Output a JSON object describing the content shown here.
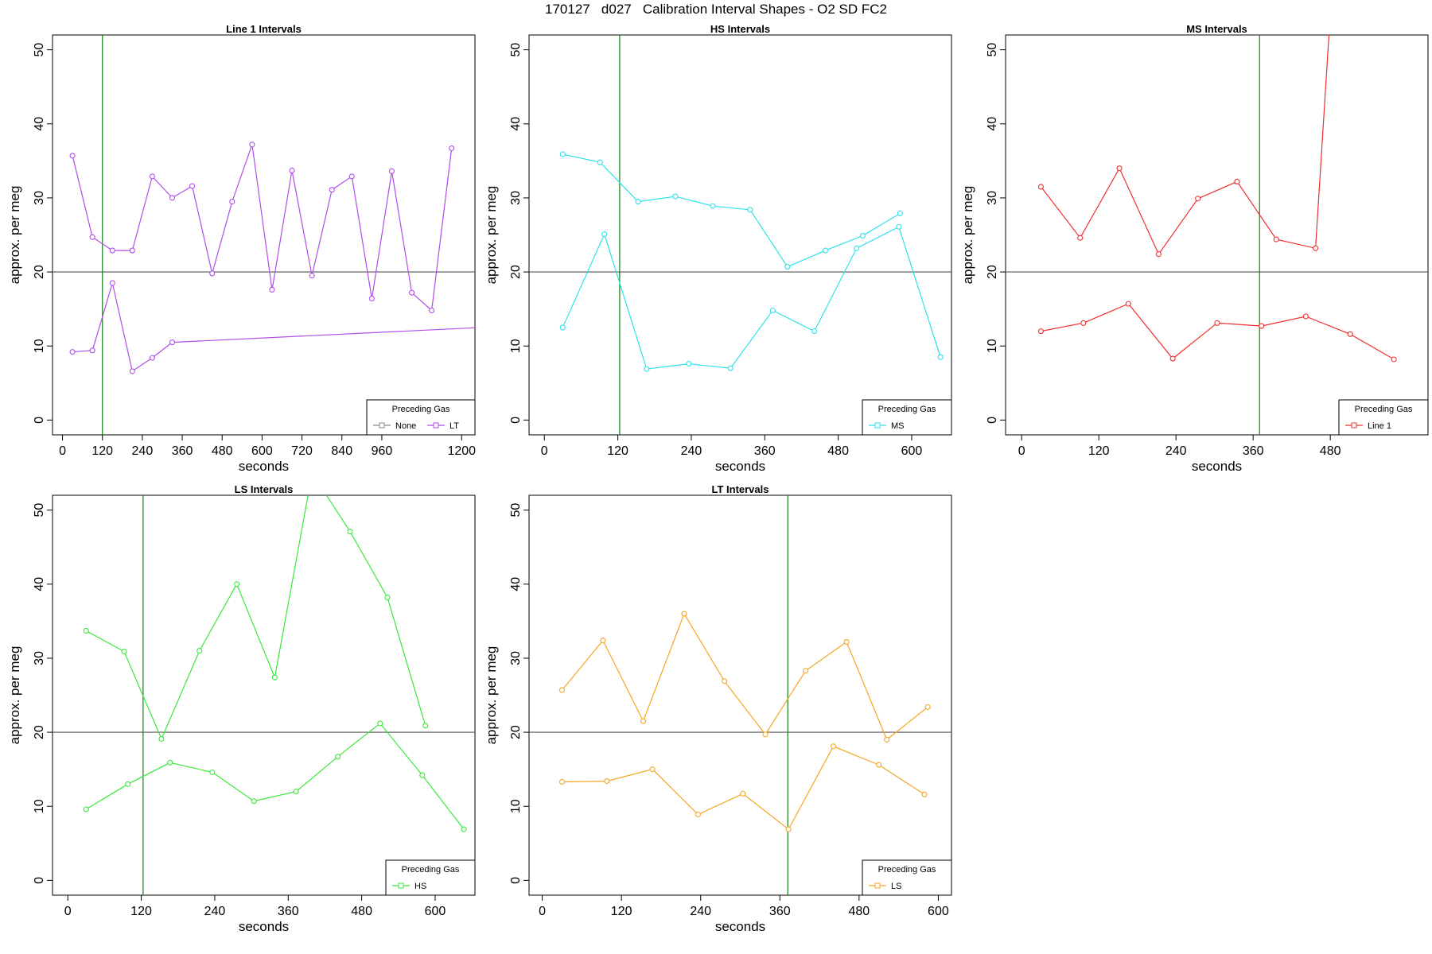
{
  "figure": {
    "title": "170127   d027   Calibration Interval Shapes - O2 SD FC2"
  },
  "colors": {
    "axis": "#000000",
    "hline": "#555555",
    "vline": "#1a7f1a",
    "none": "#888888",
    "lt": "#b04de8",
    "ms": "#2ee3ea",
    "line1": "#ee3030",
    "hs": "#3ae83a",
    "ls": "#f5a623"
  },
  "chart_data": [
    {
      "type": "line",
      "title": "Line 1 Intervals",
      "xlabel": "seconds",
      "ylabel": "approx. per meg",
      "xlim": [
        -30,
        1240
      ],
      "ylim": [
        -2,
        52
      ],
      "xticks": [
        0,
        120,
        240,
        360,
        480,
        600,
        720,
        840,
        960,
        1200
      ],
      "yticks": [
        0,
        10,
        20,
        30,
        40,
        50
      ],
      "hline": 20,
      "vline": 120,
      "legend": {
        "title": "Preceding Gas",
        "position": "bottom-right",
        "entries": [
          {
            "label": "None",
            "color_key": "none"
          },
          {
            "label": "LT",
            "color_key": "lt"
          }
        ]
      },
      "series": [
        {
          "color_key": "lt",
          "x": [
            30,
            90,
            150,
            210,
            270,
            330,
            390,
            450,
            510,
            570,
            630,
            690,
            750,
            810,
            870,
            930,
            990,
            1050,
            1110,
            1170
          ],
          "values": [
            35.7,
            24.7,
            22.9,
            22.9,
            32.9,
            30.0,
            31.6,
            19.8,
            29.5,
            37.2,
            17.6,
            33.7,
            19.5,
            31.1,
            32.9,
            16.4,
            33.6,
            17.2,
            14.8,
            36.7
          ]
        },
        {
          "color_key": "lt",
          "x": [
            30,
            90,
            150,
            210,
            270,
            330,
            1260
          ],
          "values": [
            9.2,
            9.4,
            18.5,
            6.6,
            8.4,
            10.5,
            12.5
          ]
        }
      ]
    },
    {
      "type": "line",
      "title": "HS Intervals",
      "xlabel": "seconds",
      "ylabel": "approx. per meg",
      "xlim": [
        -25,
        665
      ],
      "ylim": [
        -2,
        52
      ],
      "xticks": [
        0,
        120,
        240,
        360,
        480,
        600
      ],
      "yticks": [
        0,
        10,
        20,
        30,
        40,
        50
      ],
      "hline": 20,
      "vline": 123,
      "legend": {
        "title": "Preceding Gas",
        "position": "bottom-right",
        "entries": [
          {
            "label": "MS",
            "color_key": "ms"
          }
        ]
      },
      "series": [
        {
          "color_key": "ms",
          "x": [
            30,
            91,
            153,
            214,
            275,
            336,
            397,
            459,
            520,
            581
          ],
          "values": [
            35.9,
            34.8,
            29.5,
            30.2,
            28.9,
            28.4,
            20.7,
            22.9,
            24.9,
            27.9
          ]
        },
        {
          "color_key": "ms",
          "x": [
            30,
            98,
            167,
            236,
            304,
            373,
            441,
            510,
            579,
            647
          ],
          "values": [
            12.5,
            25.1,
            6.9,
            7.6,
            7.0,
            14.8,
            12.0,
            23.2,
            26.1,
            8.5
          ]
        }
      ]
    },
    {
      "type": "line",
      "title": "MS Intervals",
      "xlabel": "seconds",
      "ylabel": "approx. per meg",
      "xlim": [
        -25,
        632
      ],
      "ylim": [
        -2,
        52
      ],
      "xticks": [
        0,
        120,
        240,
        360,
        480
      ],
      "yticks": [
        0,
        10,
        20,
        30,
        40,
        50
      ],
      "hline": 20,
      "vline": 370,
      "legend": {
        "title": "Preceding Gas",
        "position": "bottom-right",
        "entries": [
          {
            "label": "Line 1",
            "color_key": "line1"
          }
        ]
      },
      "series": [
        {
          "color_key": "line1",
          "x": [
            30,
            91,
            152,
            213,
            274,
            335,
            396,
            457,
            480
          ],
          "values": [
            31.5,
            24.6,
            34.0,
            22.4,
            29.9,
            32.2,
            24.4,
            23.2,
            55.0
          ]
        },
        {
          "color_key": "line1",
          "x": [
            30,
            96,
            166,
            235,
            304,
            373,
            442,
            511,
            579
          ],
          "values": [
            12.0,
            13.1,
            15.7,
            8.3,
            13.1,
            12.7,
            14.0,
            11.6,
            8.2
          ]
        }
      ]
    },
    {
      "type": "line",
      "title": "LS Intervals",
      "xlabel": "seconds",
      "ylabel": "approx. per meg",
      "xlim": [
        -25,
        665
      ],
      "ylim": [
        -2,
        52
      ],
      "xticks": [
        0,
        120,
        240,
        360,
        480,
        600
      ],
      "yticks": [
        0,
        10,
        20,
        30,
        40,
        50
      ],
      "hline": 20,
      "vline": 123,
      "legend": {
        "title": "Preceding Gas",
        "position": "bottom-right",
        "entries": [
          {
            "label": "HS",
            "color_key": "hs"
          }
        ]
      },
      "series": [
        {
          "color_key": "hs",
          "x": [
            30,
            92,
            153,
            215,
            276,
            338,
            399,
            461,
            522,
            584
          ],
          "values": [
            33.7,
            30.9,
            19.1,
            31.0,
            40.0,
            27.4,
            55.0,
            47.1,
            38.2,
            20.9
          ]
        },
        {
          "color_key": "hs",
          "x": [
            30,
            98,
            167,
            236,
            304,
            373,
            441,
            510,
            579,
            647
          ],
          "values": [
            9.6,
            13.0,
            15.9,
            14.6,
            10.7,
            12.0,
            16.7,
            21.2,
            14.2,
            6.9
          ]
        }
      ]
    },
    {
      "type": "line",
      "title": "LT Intervals",
      "xlabel": "seconds",
      "ylabel": "approx. per meg",
      "xlim": [
        -20,
        620
      ],
      "ylim": [
        -2,
        52
      ],
      "xticks": [
        0,
        120,
        240,
        360,
        480,
        600
      ],
      "yticks": [
        0,
        10,
        20,
        30,
        40,
        50
      ],
      "hline": 20,
      "vline": 372,
      "legend": {
        "title": "Preceding Gas",
        "position": "bottom-right",
        "entries": [
          {
            "label": "LS",
            "color_key": "ls"
          }
        ]
      },
      "series": [
        {
          "color_key": "ls",
          "x": [
            30,
            92,
            153,
            215,
            276,
            338,
            399,
            461,
            522,
            584
          ],
          "values": [
            25.7,
            32.4,
            21.5,
            36.0,
            26.9,
            19.7,
            28.3,
            32.2,
            19.0,
            23.4
          ]
        },
        {
          "color_key": "ls",
          "x": [
            30,
            98,
            167,
            236,
            304,
            373,
            441,
            510,
            579
          ],
          "values": [
            13.3,
            13.4,
            15.0,
            8.9,
            11.7,
            6.9,
            18.1,
            15.6,
            11.6
          ]
        }
      ]
    }
  ]
}
